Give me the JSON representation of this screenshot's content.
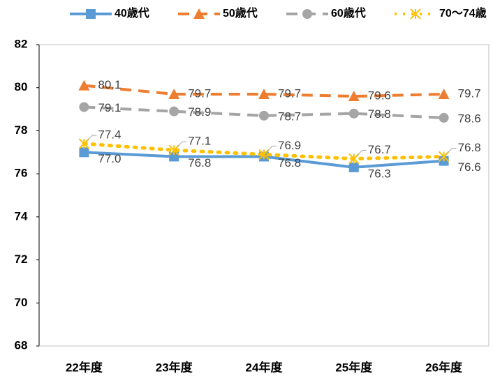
{
  "chart_data": {
    "type": "line",
    "categories": [
      "22年度",
      "23年度",
      "24年度",
      "25年度",
      "26年度"
    ],
    "series": [
      {
        "name": "40歳代",
        "color": "#5b9bd5",
        "dash": "solid",
        "marker": "square",
        "values": [
          77.0,
          76.8,
          76.8,
          76.3,
          76.6
        ],
        "value_labels": [
          "77.0",
          "76.8",
          "76.8",
          "76.3",
          "76.6"
        ]
      },
      {
        "name": "50歳代",
        "color": "#ed7d31",
        "dash": "dashed",
        "marker": "triangle",
        "values": [
          80.1,
          79.7,
          79.7,
          79.6,
          79.7
        ],
        "value_labels": [
          "80.1",
          "79.7",
          "79.7",
          "79.6",
          "79.7"
        ]
      },
      {
        "name": "60歳代",
        "color": "#a5a5a5",
        "dash": "dashed",
        "marker": "circle",
        "values": [
          79.1,
          78.9,
          78.7,
          78.8,
          78.6
        ],
        "value_labels": [
          "79.1",
          "78.9",
          "78.7",
          "78.8",
          "78.6"
        ]
      },
      {
        "name": "70～74歳",
        "color": "#ffc000",
        "dash": "dotted",
        "marker": "star",
        "values": [
          77.4,
          77.1,
          76.9,
          76.7,
          76.8
        ],
        "value_labels": [
          "77.4",
          "77.1",
          "76.9",
          "76.7",
          "76.8"
        ]
      }
    ],
    "ylim": [
      68,
      82
    ],
    "yticks": [
      68,
      70,
      72,
      74,
      76,
      78,
      80,
      82
    ],
    "legend": "top"
  }
}
